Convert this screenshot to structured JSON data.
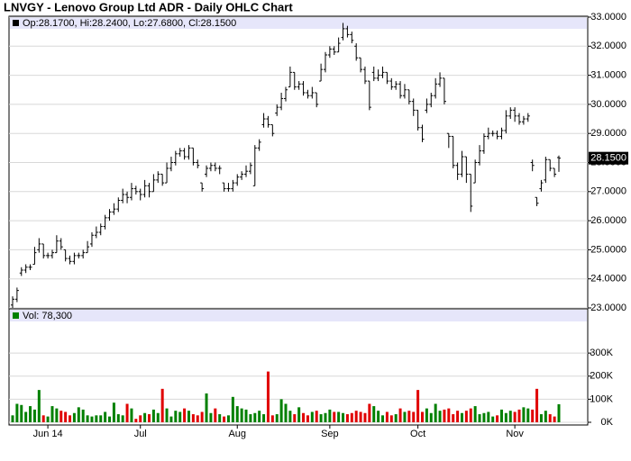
{
  "title": "LNVGY - Lenovo Group Ltd ADR - Daily OHLC Chart",
  "chart_data": [
    {
      "type": "ohlc",
      "legend_text": "Op:28.1700, Hi:28.2400, Lo:27.6800, Cl:28.1500",
      "last_label": "28.1500",
      "color": "#000000",
      "grid": true,
      "ylim": [
        23,
        33
      ],
      "yticks": [
        {
          "value": 23,
          "label": "23.0000"
        },
        {
          "value": 24,
          "label": "24.0000"
        },
        {
          "value": 25,
          "label": "25.0000"
        },
        {
          "value": 26,
          "label": "26.0000"
        },
        {
          "value": 27,
          "label": "27.0000"
        },
        {
          "value": 28,
          "label": "28.0000"
        },
        {
          "value": 29,
          "label": "29.0000"
        },
        {
          "value": 30,
          "label": "30.0000"
        },
        {
          "value": 31,
          "label": "31.0000"
        },
        {
          "value": 32,
          "label": "32.0000"
        },
        {
          "value": 33,
          "label": "33.0000"
        }
      ],
      "open": [
        23.1,
        23.3,
        24.2,
        24.3,
        24.4,
        24.5,
        25.0,
        25.2,
        24.8,
        24.8,
        24.9,
        25.3,
        25.0,
        24.7,
        24.6,
        24.8,
        24.8,
        24.9,
        25.2,
        25.5,
        25.6,
        25.8,
        26.1,
        26.3,
        26.4,
        26.7,
        26.9,
        26.8,
        27.1,
        27.0,
        26.9,
        27.2,
        27.0,
        27.4,
        27.6,
        27.3,
        27.8,
        28.0,
        28.3,
        28.4,
        28.2,
        28.5,
        28.0,
        27.3,
        27.6,
        27.8,
        27.9,
        27.8,
        27.3,
        27.1,
        27.1,
        27.3,
        27.5,
        27.6,
        27.7,
        27.2,
        28.5,
        29.3,
        29.5,
        29.3,
        29.7,
        29.9,
        30.2,
        30.6,
        31.1,
        30.6,
        30.7,
        30.4,
        30.3,
        30.4,
        30.8,
        31.2,
        31.7,
        31.9,
        31.8,
        32.3,
        32.6,
        32.4,
        32.0,
        31.6,
        31.2,
        30.8,
        31.1,
        30.9,
        31.0,
        31.1,
        30.8,
        30.6,
        30.7,
        30.3,
        30.5,
        30.1,
        29.8,
        29.2,
        29.8,
        30.0,
        30.3,
        30.7,
        30.9,
        29.0,
        28.9,
        27.9,
        27.6,
        28.2,
        27.6,
        27.3,
        28.0,
        28.4,
        28.9,
        29.0,
        29.0,
        28.9,
        29.1,
        29.6,
        29.8,
        29.6,
        29.4,
        29.5,
        28.0,
        26.8,
        27.1,
        27.4,
        28.1,
        27.8,
        28.17
      ],
      "high": [
        23.4,
        23.7,
        24.4,
        24.5,
        24.5,
        25.1,
        25.4,
        25.2,
        24.9,
        25.0,
        25.5,
        25.4,
        25.0,
        24.8,
        24.9,
        24.9,
        25.0,
        25.3,
        25.6,
        25.8,
        25.9,
        26.2,
        26.4,
        26.6,
        26.8,
        27.1,
        27.0,
        27.3,
        27.2,
        27.1,
        27.4,
        27.3,
        27.6,
        27.7,
        27.6,
        28.0,
        28.2,
        28.4,
        28.5,
        28.5,
        28.6,
        28.5,
        28.1,
        27.3,
        27.9,
        28.0,
        28.0,
        27.9,
        27.3,
        27.3,
        27.4,
        27.6,
        27.7,
        27.9,
        28.0,
        28.6,
        28.8,
        29.7,
        29.6,
        29.3,
        30.0,
        30.4,
        30.6,
        31.3,
        31.1,
        30.8,
        30.8,
        30.5,
        30.6,
        30.4,
        31.4,
        31.8,
        32.0,
        32.0,
        32.3,
        32.8,
        32.7,
        32.5,
        32.1,
        31.6,
        31.3,
        30.8,
        31.3,
        31.2,
        31.3,
        31.1,
        30.9,
        30.8,
        30.8,
        30.7,
        30.5,
        30.2,
        29.8,
        29.3,
        30.2,
        30.4,
        30.9,
        31.1,
        30.9,
        29.0,
        28.9,
        28.0,
        28.4,
        28.2,
        27.6,
        28.1,
        28.6,
        29.0,
        29.2,
        29.1,
        29.1,
        29.2,
        29.8,
        29.9,
        29.9,
        29.7,
        29.6,
        29.7,
        28.1,
        26.8,
        27.4,
        28.2,
        28.1,
        27.8,
        28.24
      ],
      "low": [
        23.0,
        23.2,
        24.1,
        24.2,
        24.3,
        24.5,
        24.9,
        24.7,
        24.7,
        24.7,
        24.9,
        25.0,
        24.6,
        24.5,
        24.5,
        24.7,
        24.7,
        24.9,
        25.1,
        25.4,
        25.5,
        25.7,
        26.0,
        26.2,
        26.3,
        26.6,
        26.6,
        26.7,
        26.9,
        26.7,
        26.8,
        26.8,
        27.0,
        27.3,
        27.2,
        27.3,
        27.7,
        27.9,
        28.2,
        28.1,
        28.1,
        27.9,
        27.8,
        27.0,
        27.5,
        27.7,
        27.7,
        27.6,
        27.0,
        27.0,
        27.0,
        27.2,
        27.4,
        27.5,
        27.6,
        27.2,
        28.4,
        29.2,
        29.2,
        28.9,
        29.6,
        29.8,
        30.1,
        30.6,
        30.5,
        30.5,
        30.3,
        30.2,
        30.2,
        29.9,
        30.8,
        31.1,
        31.6,
        31.7,
        31.8,
        32.2,
        32.3,
        32.1,
        31.5,
        31.1,
        30.7,
        29.8,
        30.8,
        30.8,
        30.9,
        30.7,
        30.5,
        30.5,
        30.2,
        30.2,
        30.0,
        29.6,
        29.1,
        28.7,
        29.7,
        29.9,
        30.2,
        30.6,
        30.0,
        28.5,
        27.8,
        27.4,
        27.5,
        27.3,
        26.3,
        27.3,
        27.9,
        28.3,
        28.8,
        28.9,
        28.8,
        28.8,
        29.0,
        29.5,
        29.4,
        29.3,
        29.3,
        29.4,
        27.7,
        26.5,
        27.0,
        27.3,
        27.7,
        27.5,
        27.68
      ],
      "close": [
        23.3,
        23.6,
        24.3,
        24.4,
        24.4,
        24.9,
        25.2,
        24.8,
        24.8,
        24.9,
        25.3,
        25.1,
        24.7,
        24.6,
        24.8,
        24.8,
        24.9,
        25.1,
        25.5,
        25.6,
        25.8,
        26.1,
        26.3,
        26.4,
        26.7,
        26.9,
        26.8,
        27.1,
        27.0,
        26.9,
        27.2,
        27.0,
        27.4,
        27.6,
        27.3,
        27.8,
        28.0,
        28.3,
        28.4,
        28.2,
        28.5,
        28.0,
        27.9,
        27.1,
        27.8,
        27.9,
        27.8,
        27.8,
        27.1,
        27.1,
        27.3,
        27.5,
        27.6,
        27.7,
        27.9,
        28.5,
        28.7,
        29.5,
        29.3,
        29.0,
        29.9,
        30.2,
        30.5,
        31.1,
        30.6,
        30.7,
        30.4,
        30.3,
        30.4,
        30.0,
        31.2,
        31.7,
        31.9,
        31.8,
        32.1,
        32.6,
        32.4,
        32.2,
        31.6,
        31.2,
        30.8,
        29.9,
        30.9,
        31.0,
        31.1,
        30.8,
        30.6,
        30.7,
        30.3,
        30.5,
        30.1,
        29.8,
        29.2,
        28.8,
        30.0,
        30.3,
        30.7,
        30.9,
        30.1,
        28.9,
        27.9,
        27.6,
        28.2,
        27.6,
        26.5,
        28.0,
        28.4,
        28.9,
        29.0,
        29.0,
        28.9,
        29.1,
        29.6,
        29.8,
        29.6,
        29.4,
        29.5,
        29.6,
        27.9,
        26.6,
        27.3,
        28.1,
        27.8,
        27.6,
        28.15
      ]
    },
    {
      "type": "bar",
      "legend_text": "Vol: 78,300",
      "up_color": "#008000",
      "down_color": "#e00000",
      "grid": true,
      "ylim": [
        0,
        480000
      ],
      "yticks": [
        {
          "value": 0,
          "label": "0K"
        },
        {
          "value": 100000,
          "label": "100K"
        },
        {
          "value": 200000,
          "label": "200K"
        },
        {
          "value": 300000,
          "label": "300K"
        }
      ],
      "categories": [
        null,
        null,
        null,
        null,
        null,
        null,
        null,
        null,
        "Jun 14",
        null,
        null,
        null,
        null,
        null,
        null,
        null,
        null,
        null,
        null,
        null,
        null,
        null,
        null,
        null,
        null,
        null,
        null,
        null,
        null,
        "Jul",
        null,
        null,
        null,
        null,
        null,
        null,
        null,
        null,
        null,
        null,
        null,
        null,
        null,
        null,
        null,
        null,
        null,
        null,
        null,
        null,
        null,
        "Aug",
        null,
        null,
        null,
        null,
        null,
        null,
        null,
        null,
        null,
        null,
        null,
        null,
        null,
        null,
        null,
        null,
        null,
        null,
        null,
        null,
        "Sep",
        null,
        null,
        null,
        null,
        null,
        null,
        null,
        null,
        null,
        null,
        null,
        null,
        null,
        null,
        null,
        null,
        null,
        null,
        null,
        "Oct",
        null,
        null,
        null,
        null,
        null,
        null,
        null,
        null,
        null,
        null,
        null,
        null,
        null,
        null,
        null,
        null,
        null,
        null,
        null,
        null,
        null,
        "Nov",
        null,
        null,
        null,
        null,
        null,
        null,
        null,
        null,
        null,
        null
      ],
      "values": [
        30000,
        80000,
        75000,
        45000,
        70000,
        55000,
        140000,
        30000,
        25000,
        70000,
        60000,
        50000,
        45000,
        30000,
        40000,
        65000,
        55000,
        30000,
        25000,
        30000,
        30000,
        45000,
        25000,
        85000,
        35000,
        30000,
        80000,
        60000,
        15000,
        30000,
        40000,
        35000,
        55000,
        40000,
        145000,
        60000,
        25000,
        50000,
        45000,
        60000,
        50000,
        35000,
        30000,
        45000,
        125000,
        40000,
        60000,
        35000,
        25000,
        30000,
        110000,
        70000,
        60000,
        55000,
        35000,
        40000,
        50000,
        35000,
        220000,
        30000,
        35000,
        100000,
        80000,
        50000,
        35000,
        65000,
        40000,
        30000,
        45000,
        50000,
        35000,
        40000,
        55000,
        45000,
        45000,
        40000,
        35000,
        40000,
        50000,
        45000,
        40000,
        80000,
        70000,
        50000,
        30000,
        45000,
        30000,
        35000,
        60000,
        45000,
        50000,
        45000,
        140000,
        45000,
        60000,
        40000,
        80000,
        50000,
        55000,
        60000,
        35000,
        50000,
        40000,
        50000,
        60000,
        70000,
        35000,
        40000,
        45000,
        25000,
        30000,
        55000,
        40000,
        50000,
        45000,
        55000,
        65000,
        60000,
        55000,
        145000,
        35000,
        50000,
        35000,
        25000,
        78300
      ]
    }
  ]
}
